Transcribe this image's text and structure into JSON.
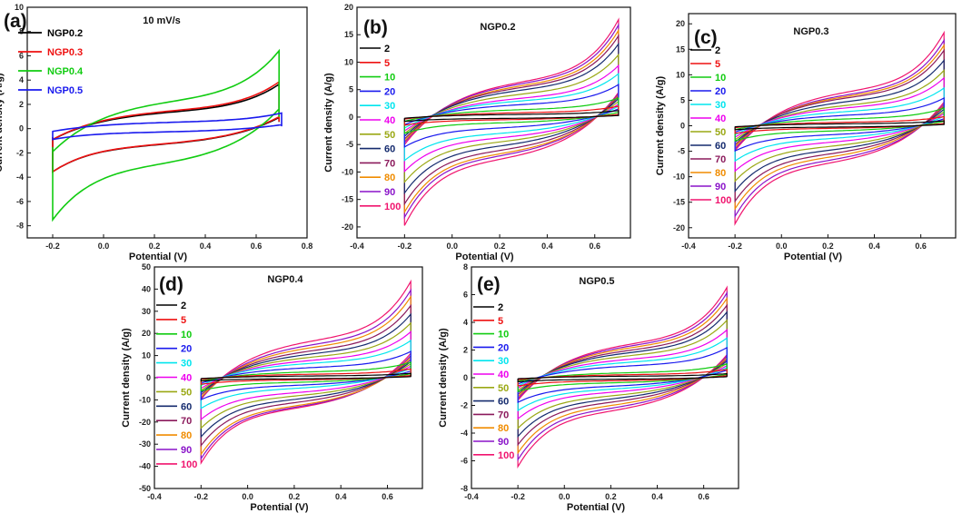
{
  "colors": {
    "c2": "#000000",
    "c5": "#ee1111",
    "c10": "#11cc11",
    "c20": "#1a1aee",
    "c30": "#00e5ee",
    "c40": "#ee00ee",
    "c50": "#9aa814",
    "c60": "#152b6e",
    "c70": "#8b1a5c",
    "c80": "#f08c00",
    "c90": "#8a14c9",
    "c100": "#f0146e"
  },
  "chart_data": [
    {
      "panel": "(a)",
      "type": "line",
      "title": "10 mV/s",
      "xlabel": "Potential (V)",
      "ylabel": "Current density (A/g)",
      "xlim": [
        -0.3,
        0.8
      ],
      "ylim": [
        -9,
        10
      ],
      "xticks": [
        "-0.2",
        "0.0",
        "0.2",
        "0.4",
        "0.6",
        "0.8"
      ],
      "yticks": [
        "-8",
        "-6",
        "-4",
        "-2",
        "0",
        "2",
        "4",
        "6",
        "8",
        "10"
      ],
      "series": [
        {
          "name": "NGP0.2",
          "color": "#000000",
          "peak_anodic": 3.7,
          "peak_cathodic": -3.6,
          "x_range": [
            -0.2,
            0.69
          ]
        },
        {
          "name": "NGP0.3",
          "color": "#ee1111",
          "peak_anodic": 3.9,
          "peak_cathodic": -3.6,
          "x_range": [
            -0.2,
            0.69
          ]
        },
        {
          "name": "NGP0.4",
          "color": "#11cc11",
          "peak_anodic": 6.5,
          "peak_cathodic": -7.6,
          "x_range": [
            -0.2,
            0.69
          ]
        },
        {
          "name": "NGP0.5",
          "color": "#1a1aee",
          "peak_anodic": 1.3,
          "peak_cathodic": -0.9,
          "x_range": [
            -0.2,
            0.7
          ]
        }
      ]
    },
    {
      "panel": "(b)",
      "type": "line",
      "title": "NGP0.2",
      "xlabel": "Potential (V)",
      "ylabel": "Current density (A/g)",
      "xlim": [
        -0.4,
        0.75
      ],
      "ylim": [
        -22,
        20
      ],
      "xticks": [
        "-0.4",
        "-0.2",
        "0.0",
        "0.2",
        "0.4",
        "0.6"
      ],
      "yticks": [
        "-20",
        "-15",
        "-10",
        "-5",
        "0",
        "5",
        "10",
        "15",
        "20"
      ],
      "scan_rates_mV_s": [
        "2",
        "5",
        "10",
        "20",
        "30",
        "40",
        "50",
        "60",
        "70",
        "80",
        "90",
        "100"
      ],
      "peak_anodic": [
        1.2,
        2.0,
        3.5,
        6,
        8,
        9.5,
        11.5,
        13.5,
        15,
        16,
        17,
        18
      ],
      "peak_cathodic": [
        -0.8,
        -1.5,
        -3,
        -5.5,
        -8,
        -10,
        -12,
        -14,
        -16,
        -17.5,
        -18.5,
        -20
      ]
    },
    {
      "panel": "(c)",
      "type": "line",
      "title": "NGP0.3",
      "xlabel": "Potential (V)",
      "ylabel": "Current density (A/g)",
      "xlim": [
        -0.4,
        0.75
      ],
      "ylim": [
        -22,
        22
      ],
      "xticks": [
        "-0.4",
        "-0.2",
        "0.0",
        "0.2",
        "0.4",
        "0.6"
      ],
      "yticks": [
        "-20",
        "-15",
        "-10",
        "-5",
        "0",
        "5",
        "10",
        "15",
        "20"
      ],
      "scan_rates_mV_s": [
        "2",
        "5",
        "10",
        "20",
        "30",
        "40",
        "50",
        "60",
        "70",
        "80",
        "90",
        "100"
      ],
      "peak_anodic": [
        1.0,
        1.8,
        3.5,
        5.5,
        7.5,
        9.5,
        11,
        13,
        15,
        16,
        17,
        18.5
      ],
      "peak_cathodic": [
        -0.8,
        -1.5,
        -3,
        -5,
        -7,
        -9,
        -11,
        -13,
        -15,
        -16.5,
        -18,
        -19.5
      ]
    },
    {
      "panel": "(d)",
      "type": "line",
      "title": "NGP0.4",
      "xlabel": "Potential (V)",
      "ylabel": "Current density (A/g)",
      "xlim": [
        -0.4,
        0.75
      ],
      "ylim": [
        -50,
        50
      ],
      "xticks": [
        "-0.4",
        "-0.2",
        "0.0",
        "0.2",
        "0.4",
        "0.6"
      ],
      "yticks": [
        "-50",
        "-40",
        "-30",
        "-20",
        "-10",
        "0",
        "10",
        "20",
        "30",
        "40",
        "50"
      ],
      "scan_rates_mV_s": [
        "2",
        "5",
        "10",
        "20",
        "30",
        "40",
        "50",
        "60",
        "70",
        "80",
        "90",
        "100"
      ],
      "peak_anodic": [
        2,
        4,
        7,
        12,
        17,
        21,
        25,
        29,
        33,
        37,
        40,
        44
      ],
      "peak_cathodic": [
        -1.5,
        -3,
        -6,
        -10,
        -14,
        -19,
        -23,
        -27,
        -31,
        -35,
        -37,
        -39
      ]
    },
    {
      "panel": "(e)",
      "type": "line",
      "title": "NGP0.5",
      "xlabel": "Potential (V)",
      "ylabel": "Current density (A/g)",
      "xlim": [
        -0.4,
        0.75
      ],
      "ylim": [
        -8,
        8
      ],
      "xticks": [
        "-0.4",
        "-0.2",
        "0.0",
        "0.2",
        "0.4",
        "0.6"
      ],
      "yticks": [
        "-8",
        "-6",
        "-4",
        "-2",
        "0",
        "2",
        "4",
        "6",
        "8"
      ],
      "scan_rates_mV_s": [
        "2",
        "5",
        "10",
        "20",
        "30",
        "40",
        "50",
        "60",
        "70",
        "80",
        "90",
        "100"
      ],
      "peak_anodic": [
        0.3,
        0.6,
        1.0,
        2.2,
        2.9,
        3.5,
        4.2,
        4.8,
        5.3,
        5.8,
        6.2,
        6.6
      ],
      "peak_cathodic": [
        -0.3,
        -0.6,
        -1.0,
        -1.8,
        -2.4,
        -3.0,
        -3.7,
        -4.3,
        -4.9,
        -5.5,
        -6.0,
        -6.5
      ]
    }
  ]
}
